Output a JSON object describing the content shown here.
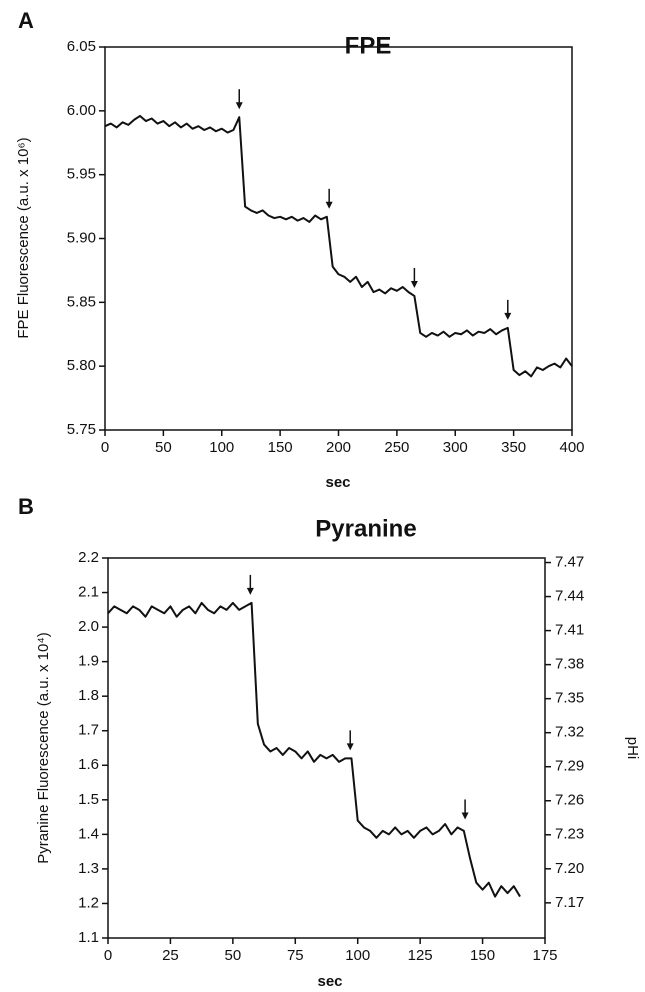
{
  "chart_data": [
    {
      "type": "line",
      "panel_label": "A",
      "title": "FPE",
      "x_label": "sec",
      "y_label": "FPE Fluorescence (a.u. x 10⁶)",
      "color": "#111111",
      "x": [
        0,
        5,
        10,
        15,
        20,
        25,
        30,
        35,
        40,
        45,
        50,
        55,
        60,
        65,
        70,
        75,
        80,
        85,
        90,
        95,
        100,
        105,
        110,
        115,
        120,
        125,
        130,
        135,
        140,
        145,
        150,
        155,
        160,
        165,
        170,
        175,
        180,
        185,
        190,
        195,
        200,
        205,
        210,
        215,
        220,
        225,
        230,
        235,
        240,
        245,
        250,
        255,
        260,
        265,
        270,
        275,
        280,
        285,
        290,
        295,
        300,
        305,
        310,
        315,
        320,
        325,
        330,
        335,
        340,
        345,
        350,
        355,
        360,
        365,
        370,
        375,
        380,
        385,
        390,
        395,
        400
      ],
      "values": [
        5.988,
        5.99,
        5.987,
        5.991,
        5.989,
        5.993,
        5.996,
        5.992,
        5.994,
        5.99,
        5.992,
        5.988,
        5.991,
        5.987,
        5.99,
        5.986,
        5.988,
        5.985,
        5.987,
        5.984,
        5.986,
        5.983,
        5.985,
        5.995,
        5.925,
        5.922,
        5.92,
        5.922,
        5.918,
        5.916,
        5.917,
        5.915,
        5.917,
        5.914,
        5.916,
        5.913,
        5.918,
        5.915,
        5.917,
        5.878,
        5.872,
        5.87,
        5.866,
        5.87,
        5.862,
        5.866,
        5.858,
        5.86,
        5.857,
        5.861,
        5.859,
        5.862,
        5.858,
        5.855,
        5.826,
        5.823,
        5.826,
        5.824,
        5.827,
        5.823,
        5.826,
        5.825,
        5.828,
        5.824,
        5.827,
        5.826,
        5.829,
        5.825,
        5.828,
        5.83,
        5.797,
        5.793,
        5.796,
        5.792,
        5.799,
        5.797,
        5.8,
        5.802,
        5.799,
        5.806,
        5.8
      ],
      "arrows": [
        115,
        192,
        265,
        345
      ],
      "xlim": [
        0,
        400
      ],
      "xticks": [
        0,
        50,
        100,
        150,
        200,
        250,
        300,
        350,
        400
      ],
      "ylim": [
        5.75,
        6.05
      ],
      "yticks": [
        5.75,
        {
          "value": 5.8,
          "label": "5.80"
        },
        5.85,
        {
          "value": 5.9,
          "label": "5.90"
        },
        5.95,
        {
          "value": 6.0,
          "label": "6.00"
        },
        6.05
      ]
    },
    {
      "type": "line",
      "panel_label": "B",
      "title": "Pyranine",
      "x_label": "sec",
      "y_label": "Pyranine Fluorescence (a.u. x 10⁴)",
      "y2_label": "pHi",
      "color": "#111111",
      "x": [
        0,
        2.5,
        5,
        7.5,
        10,
        12.5,
        15,
        17.5,
        20,
        22.5,
        25,
        27.5,
        30,
        32.5,
        35,
        37.5,
        40,
        42.5,
        45,
        47.5,
        50,
        52.5,
        55,
        57.5,
        60,
        62.5,
        65,
        67.5,
        70,
        72.5,
        75,
        77.5,
        80,
        82.5,
        85,
        87.5,
        90,
        92.5,
        95,
        97.5,
        100,
        102.5,
        105,
        107.5,
        110,
        112.5,
        115,
        117.5,
        120,
        122.5,
        125,
        127.5,
        130,
        132.5,
        135,
        137.5,
        140,
        142.5,
        145,
        147.5,
        150,
        152.5,
        155,
        157.5,
        160,
        162.5,
        165
      ],
      "values": [
        2.04,
        2.06,
        2.05,
        2.04,
        2.06,
        2.05,
        2.03,
        2.06,
        2.05,
        2.04,
        2.06,
        2.03,
        2.05,
        2.06,
        2.04,
        2.07,
        2.05,
        2.04,
        2.06,
        2.05,
        2.07,
        2.05,
        2.06,
        2.07,
        1.72,
        1.66,
        1.64,
        1.65,
        1.63,
        1.65,
        1.64,
        1.62,
        1.64,
        1.61,
        1.63,
        1.62,
        1.63,
        1.61,
        1.62,
        1.62,
        1.44,
        1.42,
        1.41,
        1.39,
        1.41,
        1.4,
        1.42,
        1.4,
        1.41,
        1.39,
        1.41,
        1.42,
        1.4,
        1.41,
        1.43,
        1.4,
        1.42,
        1.41,
        1.33,
        1.26,
        1.24,
        1.26,
        1.22,
        1.25,
        1.23,
        1.25,
        1.22
      ],
      "arrows": [
        57,
        97,
        143
      ],
      "xlim": [
        0,
        175
      ],
      "xticks": [
        0,
        25,
        50,
        75,
        100,
        125,
        150,
        175
      ],
      "ylim": [
        1.1,
        2.2
      ],
      "yticks": [
        1.1,
        1.2,
        1.3,
        1.4,
        1.5,
        1.6,
        1.7,
        1.8,
        1.9,
        {
          "value": 2,
          "label": "2.0"
        },
        2.1,
        2.2
      ],
      "y2lim": [
        7.139,
        7.474
      ],
      "y2ticks": [
        7.17,
        {
          "value": 7.2,
          "label": "7.20"
        },
        7.23,
        7.26,
        7.29,
        7.32,
        7.35,
        7.38,
        7.41,
        7.44,
        7.47
      ]
    }
  ]
}
